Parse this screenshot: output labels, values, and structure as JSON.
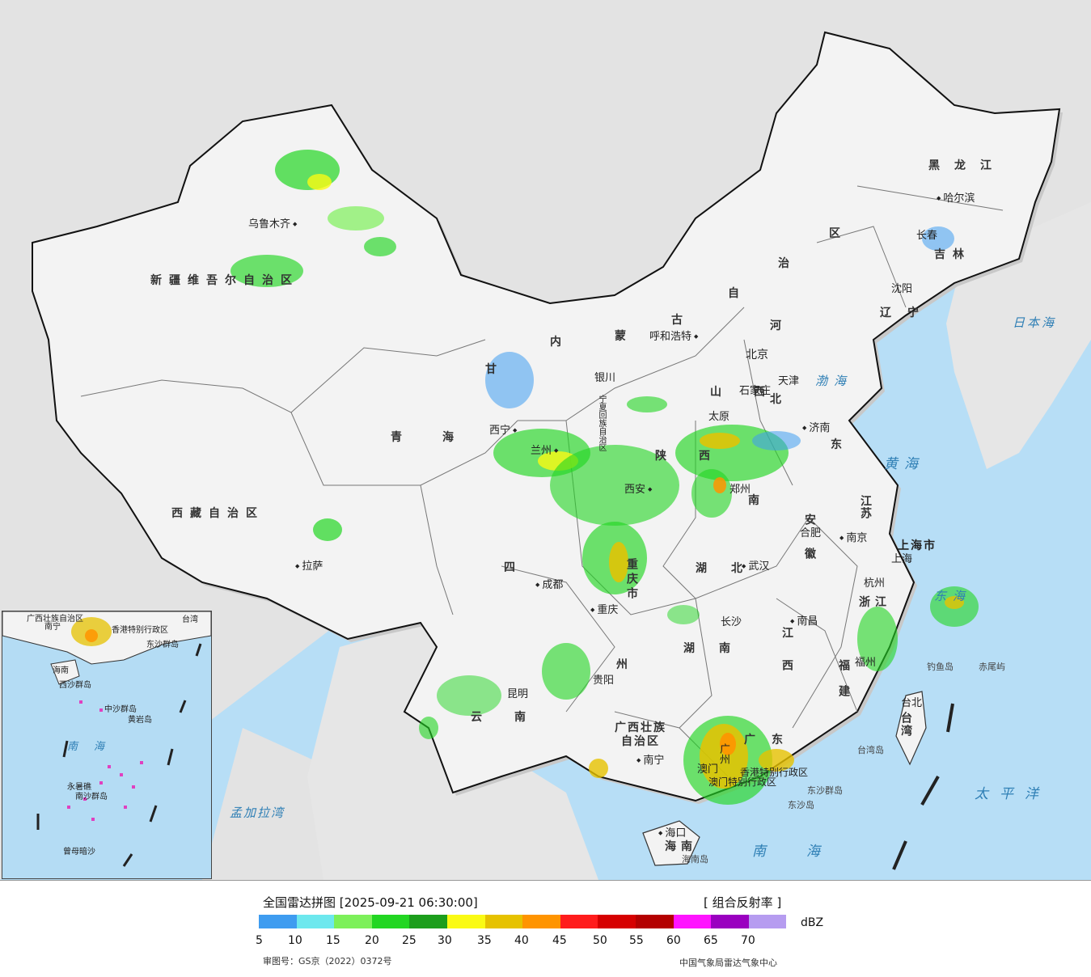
{
  "legend": {
    "title": "全国雷达拼图 [2025-09-21 06:30:00]",
    "product": "[ 组合反射率 ]",
    "unit": "dBZ",
    "colors": [
      "#3e9cf0",
      "#6de8ee",
      "#7df05a",
      "#22d622",
      "#1c9e1c",
      "#fafa14",
      "#e6c200",
      "#ff9400",
      "#ff1c1c",
      "#d60000",
      "#b40000",
      "#ff14ff",
      "#9a00c0",
      "#b69cf0"
    ],
    "ticks": [
      "5",
      "10",
      "15",
      "20",
      "25",
      "30",
      "35",
      "40",
      "45",
      "50",
      "55",
      "60",
      "65",
      "70"
    ],
    "approval": "审图号：GS京（2022）0372号",
    "credit": "中国气象局雷达气象中心"
  },
  "regions": {
    "xinjiang": "新疆维吾尔自治区",
    "xizang": "西藏自治区",
    "qinghai": "青海",
    "gansu": "甘",
    "sichuan": "四",
    "yunnan": "云南",
    "guizhou": "州",
    "guangxi_1": "广西壮族",
    "guangxi_2": "自治区",
    "guangdong": "广东",
    "hainan": "海南",
    "hunan": "湖南",
    "hubei": "湖北",
    "shaanxi": "陕西",
    "henan": "南",
    "shanxi": "山西",
    "hebei": "北",
    "shandong": "东",
    "jiangsu": "江苏",
    "anhui": "安徽",
    "zhejiang": "浙江",
    "jiangxi": "江西",
    "fujian": "福建",
    "taiwan": "台湾",
    "heilongjiang": "黑龙江",
    "jilin": "吉林",
    "liaoning": "辽宁",
    "neimenggu_1": "内",
    "neimenggu_2": "蒙",
    "neimenggu_3": "古",
    "neimenggu_4": "自",
    "neimenggu_5": "治",
    "neimenggu_6": "区",
    "chongqing": "重庆市",
    "shanghai": "上海市",
    "ningxia": "宁夏回族自治区",
    "hongkong": "香港特别行政区",
    "macau": "澳门特别行政区",
    "tianjin": "天津"
  },
  "cities": {
    "urumqi": "乌鲁木齐",
    "lhasa": "拉萨",
    "xining": "西宁",
    "lanzhou": "兰州",
    "yinchuan": "银川",
    "hohhot": "呼和浩特",
    "beijing": "北京",
    "tianjin": "天津",
    "shijiazhuang": "石家庄",
    "taiyuan": "太原",
    "jinan": "济南",
    "zhengzhou": "郑州",
    "xian": "西安",
    "chengdu": "成都",
    "chongqing": "重庆",
    "guiyang": "贵阳",
    "kunming": "昆明",
    "nanning": "南宁",
    "guangzhou": "广州",
    "haikou": "海口",
    "changsha": "长沙",
    "wuhan": "武汉",
    "hefei": "合肥",
    "nanjing": "南京",
    "shanghai": "上海",
    "hangzhou": "杭州",
    "nanchang": "南昌",
    "fuzhou": "福州",
    "taibei": "台北",
    "shenyang": "沈阳",
    "changchun": "长春",
    "harbin": "哈尔滨",
    "macau": "澳门"
  },
  "seas": {
    "japan_sea": "日本海",
    "bohai": "渤海",
    "yellow_sea": "黄海",
    "east_sea": "东海",
    "pacific": "太平洋",
    "south_sea": "南海",
    "bengal": "孟加拉湾"
  },
  "islands": {
    "diaoyu": "钓鱼岛",
    "chiwei": "赤尾屿",
    "taiwan_island": "台湾岛",
    "dongsha_islands": "东沙群岛",
    "dongsha_island": "东沙岛",
    "hainan_island": "海南岛"
  },
  "inset": {
    "guangxi": "广西壮族自治区",
    "nanning": "南宁",
    "taiwan": "台湾",
    "hongkong": "香港特别行政区",
    "dongsha": "东沙群岛",
    "hainan": "海南",
    "xisha": "西沙群岛",
    "zhongsha": "中沙群岛",
    "huangyan": "黄岩岛",
    "south_sea": "南海",
    "nansha": "南沙群岛",
    "yongshu": "永暑礁",
    "zengmu": "曾母暗沙"
  }
}
